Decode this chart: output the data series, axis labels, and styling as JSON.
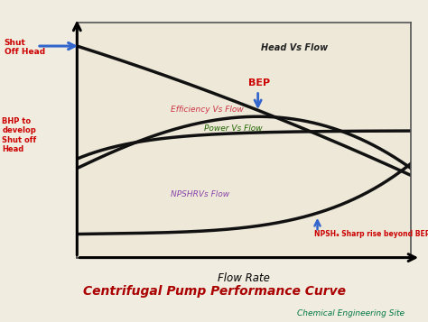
{
  "title": "Centrifugal Pump Performance Curve",
  "subtitle": "Chemical Engineering Site",
  "xlabel": "Flow Rate",
  "bg_color": "#f0ece0",
  "box_bg": "#ede8d8",
  "border_color": "#555555",
  "curve_color": "#111111",
  "curve_lw": 2.5,
  "head_label": "Head Vs Flow",
  "head_label_color": "#222222",
  "eff_label": "Efficiency Vs Flow",
  "eff_label_color": "#cc3344",
  "power_label": "Power Vs Flow",
  "power_label_color": "#226600",
  "npshr_label": "NPSHRVs Flow",
  "npshr_label_color": "#8844aa",
  "shut_off_text": "Shut\nOff Head",
  "shut_off_color": "#cc0000",
  "bep_text": "BEP",
  "bep_color": "#cc0000",
  "bhp_text": "BHP to\ndevelop\nShut off\nHead",
  "bhp_color": "#cc0000",
  "npsha_text": "NPSHₐ Sharp rise beyond BEP",
  "npsha_color": "#cc0000",
  "arrow_color": "#3366cc",
  "title_color": "#aa0000",
  "subtitle_color": "#007744"
}
